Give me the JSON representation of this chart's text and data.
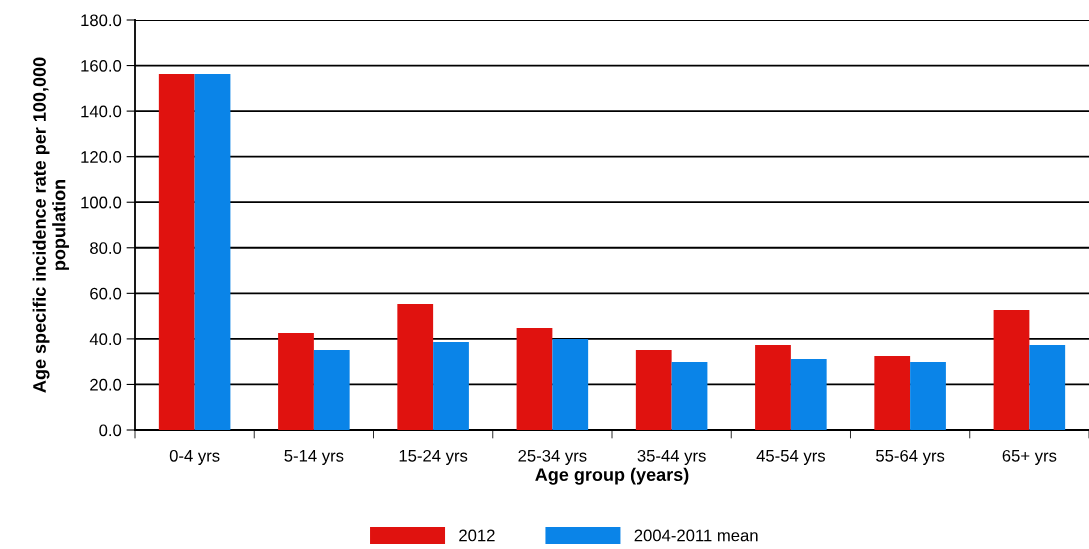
{
  "chart_data": {
    "type": "bar",
    "xlabel": "Age group (years)",
    "ylabel": "Age specific incidence rate per 100,000\npopulation",
    "categories": [
      "0-4 yrs",
      "5-14 yrs",
      "15-24 yrs",
      "25-34 yrs",
      "35-44 yrs",
      "45-54 yrs",
      "55-64 yrs",
      "65+ yrs"
    ],
    "series": [
      {
        "name": "2012",
        "color": "#e0120f",
        "values": [
          156.3,
          42.6,
          55.3,
          44.8,
          35.1,
          37.3,
          32.5,
          52.7
        ]
      },
      {
        "name": "2004-2011 mean",
        "color": "#0a84e8",
        "values": [
          156.3,
          35.1,
          38.6,
          40.0,
          29.9,
          31.2,
          29.9,
          37.3
        ]
      }
    ],
    "ylim": [
      0,
      180
    ],
    "yticks": [
      {
        "value": 0,
        "label": "0.0"
      },
      {
        "value": 20,
        "label": "20.0"
      },
      {
        "value": 40,
        "label": "40.0"
      },
      {
        "value": 60,
        "label": "60.0"
      },
      {
        "value": 80,
        "label": "80.0"
      },
      {
        "value": 100,
        "label": "100.0"
      },
      {
        "value": 120,
        "label": "120.0"
      },
      {
        "value": 140,
        "label": "140.0"
      },
      {
        "value": 160,
        "label": "160.0"
      },
      {
        "value": 180,
        "label": "180.0"
      }
    ],
    "grid": "y",
    "legend": "bottom"
  }
}
